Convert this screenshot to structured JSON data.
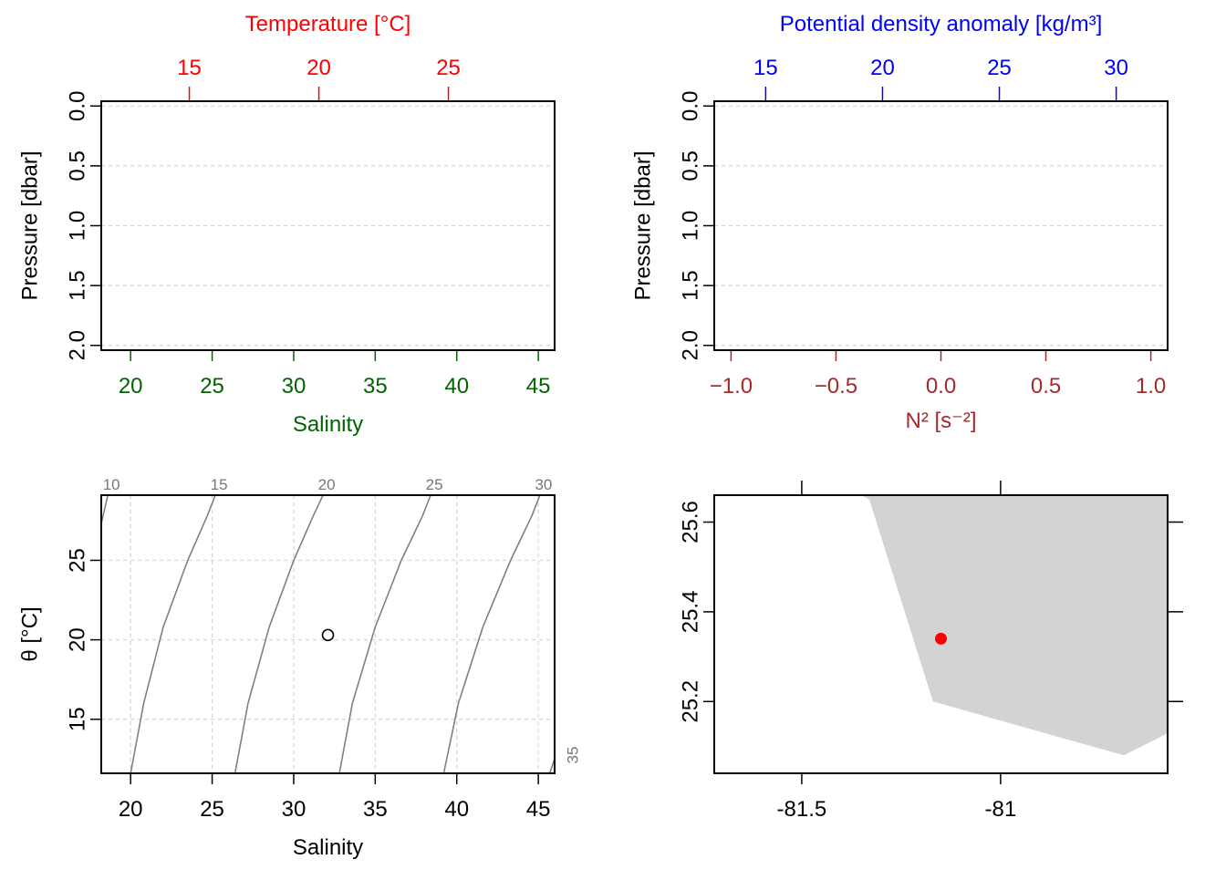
{
  "colors": {
    "temperature": "#ff0000",
    "salinity": "#006400",
    "density": "#0000ff",
    "n2": "#a52a2a",
    "frame": "#000000",
    "grid": "#d3d3d3",
    "isopycnal": "#808080",
    "land": "#d3d3d3",
    "station": "#ff0000"
  },
  "chart_data": [
    {
      "type": "line",
      "panel": "profile-salinity-temperature",
      "top_axis": {
        "label": "Temperature [°C]",
        "ticks": [
          "15",
          "20",
          "25"
        ],
        "range": [
          11.6,
          29.1
        ]
      },
      "bottom_axis": {
        "label": "Salinity",
        "ticks": [
          "20",
          "25",
          "30",
          "35",
          "40",
          "45"
        ],
        "range": [
          18.2,
          46.0
        ]
      },
      "y_axis": {
        "label": "Pressure [dbar]",
        "ticks": [
          "0.0",
          "0.5",
          "1.0",
          "1.5",
          "2.0"
        ],
        "range": [
          2.04,
          -0.04
        ],
        "reversed": true
      },
      "grid": true,
      "series": []
    },
    {
      "type": "line",
      "panel": "profile-density-n2",
      "top_axis": {
        "label": "Potential density anomaly [kg/m³]",
        "ticks": [
          "15",
          "20",
          "25",
          "30"
        ],
        "range": [
          12.8,
          32.2
        ]
      },
      "bottom_axis": {
        "label": "N² [s⁻²]",
        "ticks": [
          "−1.0",
          "−0.5",
          "0.0",
          "0.5",
          "1.0"
        ],
        "range": [
          -1.08,
          1.08
        ]
      },
      "y_axis": {
        "label": "Pressure [dbar]",
        "ticks": [
          "0.0",
          "0.5",
          "1.0",
          "1.5",
          "2.0"
        ],
        "range": [
          2.04,
          -0.04
        ],
        "reversed": true
      },
      "grid": true,
      "series": []
    },
    {
      "type": "scatter",
      "panel": "ts-diagram",
      "x_axis": {
        "label": "Salinity",
        "ticks": [
          "20",
          "25",
          "30",
          "35",
          "40",
          "45"
        ],
        "range": [
          18.2,
          46.0
        ]
      },
      "y_axis": {
        "label": "θ [°C]",
        "ticks": [
          "15",
          "20",
          "25"
        ],
        "range": [
          11.6,
          29.1
        ]
      },
      "grid": true,
      "isopycnals": [
        {
          "label": "10",
          "points": [
            [
              18.2,
              27.3
            ],
            [
              18.6,
              29.1
            ]
          ]
        },
        {
          "label": "15",
          "points": [
            [
              20.0,
              11.6
            ],
            [
              20.8,
              16.0
            ],
            [
              22.0,
              20.8
            ],
            [
              23.5,
              25.0
            ],
            [
              24.7,
              27.8
            ],
            [
              25.2,
              29.1
            ]
          ]
        },
        {
          "label": "20",
          "points": [
            [
              26.4,
              11.6
            ],
            [
              27.2,
              16.0
            ],
            [
              28.5,
              20.8
            ],
            [
              30.0,
              25.0
            ],
            [
              31.2,
              27.8
            ],
            [
              31.8,
              29.1
            ]
          ]
        },
        {
          "label": "25",
          "points": [
            [
              32.8,
              11.6
            ],
            [
              33.6,
              16.0
            ],
            [
              35.0,
              20.8
            ],
            [
              36.6,
              25.0
            ],
            [
              37.9,
              27.8
            ],
            [
              38.4,
              29.1
            ]
          ]
        },
        {
          "label": "30",
          "points": [
            [
              39.2,
              11.6
            ],
            [
              40.1,
              16.0
            ],
            [
              41.6,
              20.8
            ],
            [
              43.3,
              25.0
            ],
            [
              44.6,
              27.8
            ],
            [
              45.1,
              29.1
            ]
          ]
        },
        {
          "label": "35",
          "points": [
            [
              45.7,
              11.6
            ],
            [
              46.0,
              12.5
            ]
          ]
        }
      ],
      "points": [
        {
          "x": 32.1,
          "y": 20.3
        }
      ]
    },
    {
      "type": "map",
      "panel": "station-map",
      "x_axis": {
        "ticks": [
          "-81.5",
          "-81"
        ],
        "range": [
          -81.72,
          -80.58
        ]
      },
      "y_axis": {
        "ticks": [
          "25.2",
          "25.4",
          "25.6"
        ],
        "range": [
          25.04,
          25.66
        ]
      },
      "land_polygon": [
        [
          -81.35,
          25.66
        ],
        [
          -81.33,
          25.65
        ],
        [
          -81.17,
          25.2
        ],
        [
          -80.69,
          25.08
        ],
        [
          -80.6,
          25.12
        ],
        [
          -80.58,
          25.13
        ],
        [
          -80.58,
          25.66
        ]
      ],
      "station": {
        "lon": -81.15,
        "lat": 25.34
      }
    }
  ]
}
